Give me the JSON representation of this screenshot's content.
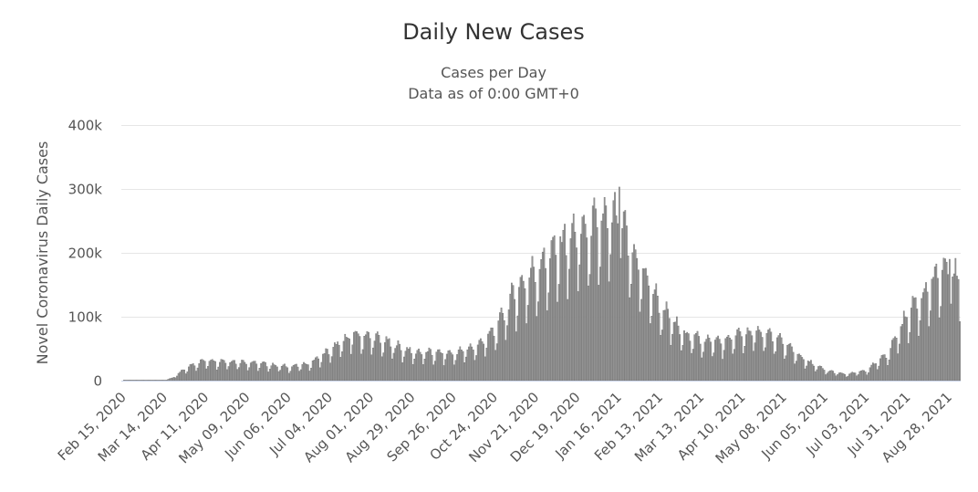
{
  "chart_data": {
    "type": "bar",
    "title": "Daily New Cases",
    "subtitle_lines": [
      "Cases per Day",
      "Data as of 0:00 GMT+0"
    ],
    "ylabel": "Novel Coronavirus Daily Cases",
    "xlabel": "",
    "ylim": [
      0,
      400000
    ],
    "yticks": [
      0,
      100000,
      200000,
      300000,
      400000
    ],
    "ytick_labels": [
      "0",
      "100k",
      "200k",
      "300k",
      "400k"
    ],
    "x_start": "2020-02-15",
    "x_end": "2021-09-04",
    "xtick_labels": [
      "Feb 15, 2020",
      "Mar 14, 2020",
      "Apr 11, 2020",
      "May 09, 2020",
      "Jun 06, 2020",
      "Jul 04, 2020",
      "Aug 01, 2020",
      "Aug 29, 2020",
      "Sep 26, 2020",
      "Oct 24, 2020",
      "Nov 21, 2020",
      "Dec 19, 2020",
      "Jan 16, 2021",
      "Feb 13, 2021",
      "Mar 13, 2021",
      "Apr 10, 2021",
      "May 08, 2021",
      "Jun 05, 2021",
      "Jul 03, 2021",
      "Jul 31, 2021",
      "Aug 28, 2021"
    ],
    "xtick_days": [
      0,
      28,
      56,
      84,
      112,
      140,
      168,
      196,
      224,
      252,
      280,
      308,
      336,
      364,
      392,
      420,
      448,
      476,
      504,
      532,
      560
    ],
    "grid": true,
    "legend": "none",
    "bar_color": "#999999",
    "trend_keypoints": [
      {
        "day": 0,
        "value": 0
      },
      {
        "day": 28,
        "value": 500
      },
      {
        "day": 33,
        "value": 4000
      },
      {
        "day": 40,
        "value": 15000
      },
      {
        "day": 48,
        "value": 25000
      },
      {
        "day": 56,
        "value": 30000
      },
      {
        "day": 84,
        "value": 27000
      },
      {
        "day": 112,
        "value": 20000
      },
      {
        "day": 126,
        "value": 25000
      },
      {
        "day": 140,
        "value": 45000
      },
      {
        "day": 155,
        "value": 68000
      },
      {
        "day": 168,
        "value": 65000
      },
      {
        "day": 196,
        "value": 42000
      },
      {
        "day": 224,
        "value": 40000
      },
      {
        "day": 240,
        "value": 52000
      },
      {
        "day": 252,
        "value": 75000
      },
      {
        "day": 265,
        "value": 130000
      },
      {
        "day": 280,
        "value": 165000
      },
      {
        "day": 300,
        "value": 210000
      },
      {
        "day": 315,
        "value": 225000
      },
      {
        "day": 330,
        "value": 240000
      },
      {
        "day": 336,
        "value": 235000
      },
      {
        "day": 345,
        "value": 190000
      },
      {
        "day": 364,
        "value": 110000
      },
      {
        "day": 378,
        "value": 72000
      },
      {
        "day": 392,
        "value": 60000
      },
      {
        "day": 406,
        "value": 58000
      },
      {
        "day": 420,
        "value": 70000
      },
      {
        "day": 434,
        "value": 72000
      },
      {
        "day": 448,
        "value": 55000
      },
      {
        "day": 462,
        "value": 30000
      },
      {
        "day": 476,
        "value": 15000
      },
      {
        "day": 490,
        "value": 9000
      },
      {
        "day": 504,
        "value": 15000
      },
      {
        "day": 518,
        "value": 40000
      },
      {
        "day": 532,
        "value": 100000
      },
      {
        "day": 546,
        "value": 140000
      },
      {
        "day": 556,
        "value": 165000
      },
      {
        "day": 567,
        "value": 150000
      }
    ],
    "series": [
      {
        "name": "Daily New Cases",
        "generator": "weekly_pattern",
        "weekday_factors": [
          0.62,
          0.78,
          1.05,
          1.14,
          1.18,
          1.12,
          0.98
        ],
        "notable_values": [
          {
            "day": 336,
            "value": 303000
          },
          {
            "day": 324,
            "value": 250000
          },
          {
            "day": 560,
            "value": 190000
          }
        ]
      }
    ]
  }
}
